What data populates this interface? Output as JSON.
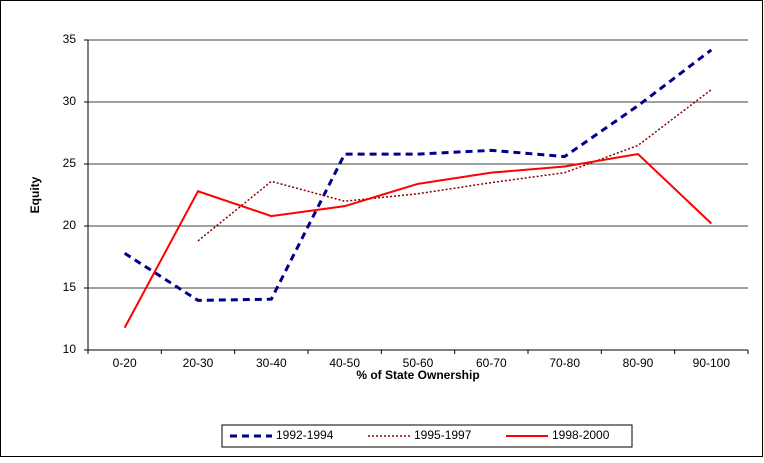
{
  "chart_data": {
    "type": "line",
    "x_label": "% of State Ownership",
    "y_label": "Equity",
    "categories": [
      "0-20",
      "20-30",
      "30-40",
      "40-50",
      "50-60",
      "60-70",
      "70-80",
      "80-90",
      "90-100"
    ],
    "series": [
      {
        "name": "1992-1994",
        "color": "#00008b",
        "style": "dashed",
        "values": [
          17.8,
          14.0,
          14.1,
          25.8,
          25.8,
          26.1,
          25.6,
          29.7,
          34.2
        ]
      },
      {
        "name": "1995-1997",
        "color": "#8b0000",
        "style": "dotted",
        "values": [
          null,
          18.8,
          23.6,
          22.0,
          22.6,
          23.5,
          24.3,
          26.5,
          31.0
        ]
      },
      {
        "name": "1998-2000",
        "color": "#ff0000",
        "style": "solid",
        "values": [
          11.8,
          22.8,
          20.8,
          21.6,
          23.4,
          24.3,
          24.8,
          25.8,
          20.2
        ]
      }
    ],
    "ylim": [
      10,
      35
    ],
    "yticks": [
      10,
      15,
      20,
      25,
      30,
      35
    ],
    "grid": true,
    "legend": "bottom"
  }
}
